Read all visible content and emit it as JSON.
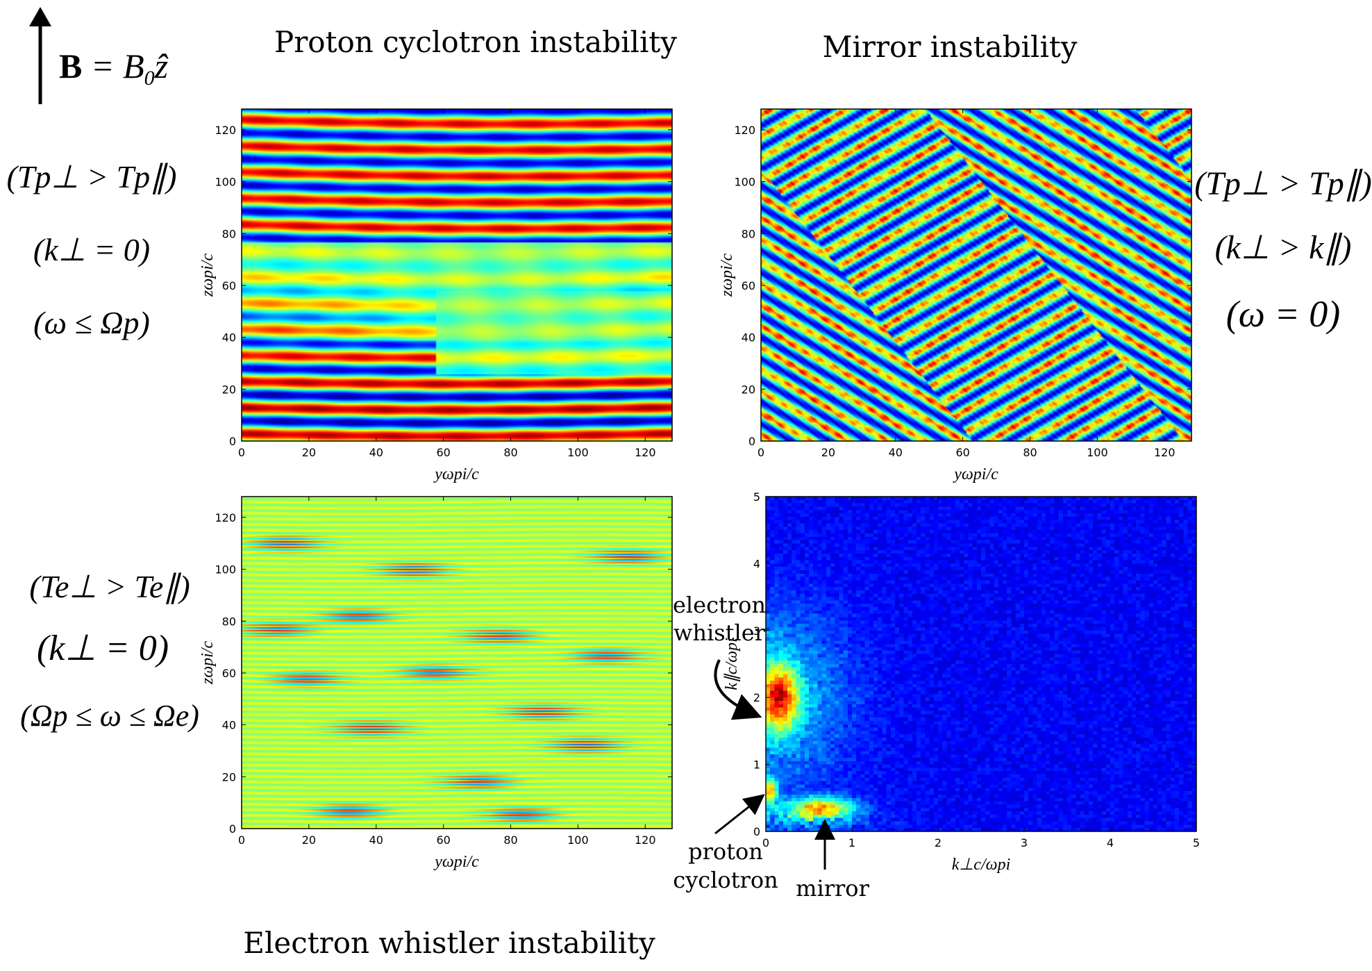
{
  "header": {
    "field_label": "B = B₀ẑ",
    "field_bold": "B",
    "field_eq": " = B",
    "field_sub": "0",
    "field_hat": "ẑ"
  },
  "panels": {
    "proton_cyclotron": {
      "title": "Proton cyclotron instability",
      "xlabel": "yωpi/c",
      "ylabel": "zωpi/c",
      "xticks": [
        "0",
        "20",
        "40",
        "60",
        "80",
        "100",
        "120"
      ],
      "yticks": [
        "0",
        "20",
        "40",
        "60",
        "80",
        "100",
        "120"
      ],
      "conditions": [
        "(Tp⊥ > Tp∥)",
        "(k⊥ = 0)",
        "(ω ≤ Ωp)"
      ]
    },
    "mirror": {
      "title": "Mirror instability",
      "xlabel": "yωpi/c",
      "ylabel": "zωpi/c",
      "xticks": [
        "0",
        "20",
        "40",
        "60",
        "80",
        "100",
        "120"
      ],
      "yticks": [
        "0",
        "20",
        "40",
        "60",
        "80",
        "100",
        "120"
      ],
      "conditions": [
        "(Tp⊥ > Tp∥)",
        "(k⊥ > k∥)",
        "(ω = 0)"
      ]
    },
    "electron_whistler": {
      "title": "Electron whistler instability",
      "xlabel": "yωpi/c",
      "ylabel": "zωpi/c",
      "xticks": [
        "0",
        "20",
        "40",
        "60",
        "80",
        "100",
        "120"
      ],
      "yticks": [
        "0",
        "20",
        "40",
        "60",
        "80",
        "100",
        "120"
      ],
      "conditions": [
        "(Te⊥ > Te∥)",
        "(k⊥ = 0)",
        "(Ωp ≤ ω ≤ Ωe)"
      ]
    },
    "spectrum": {
      "xlabel": "k⊥c/ωpi",
      "ylabel": "k∥c/ωpi",
      "xticks": [
        "0",
        "1",
        "2",
        "3",
        "4",
        "5"
      ],
      "yticks": [
        "0",
        "1",
        "2",
        "3",
        "4",
        "5"
      ],
      "annotations": {
        "electron_whistler": [
          "electron",
          "whistler"
        ],
        "proton_cyclotron": [
          "proton",
          "cyclotron"
        ],
        "mirror": "mirror"
      }
    }
  },
  "chart_data": [
    {
      "type": "heatmap",
      "title": "Proton cyclotron instability",
      "xlabel": "yωpi/c",
      "ylabel": "zωpi/c",
      "xlim": [
        0,
        128
      ],
      "ylim": [
        0,
        128
      ],
      "colormap": "jet",
      "pattern": "horizontal bands (k⊥ = 0)"
    },
    {
      "type": "heatmap",
      "title": "Mirror instability",
      "xlabel": "yωpi/c",
      "ylabel": "zωpi/c",
      "xlim": [
        0,
        128
      ],
      "ylim": [
        0,
        128
      ],
      "colormap": "jet",
      "pattern": "oblique stripes (k⊥ > k∥)"
    },
    {
      "type": "heatmap",
      "title": "Electron whistler instability",
      "xlabel": "yωpi/c",
      "ylabel": "zωpi/c",
      "xlim": [
        0,
        128
      ],
      "ylim": [
        0,
        128
      ],
      "colormap": "jet",
      "pattern": "fine horizontal bands (k⊥ = 0)"
    },
    {
      "type": "heatmap",
      "xlabel": "k⊥c/ωpi",
      "ylabel": "k∥c/ωpi",
      "xlim": [
        0,
        5
      ],
      "ylim": [
        0,
        5
      ],
      "colormap": "jet",
      "peaks": [
        {
          "name": "electron whistler",
          "kperp": 0.15,
          "kpar": 2.0
        },
        {
          "name": "proton cyclotron",
          "kperp": 0.05,
          "kpar": 0.6
        },
        {
          "name": "mirror",
          "kperp": 0.65,
          "kpar": 0.35
        }
      ]
    }
  ],
  "colors": {
    "jet_dark_blue": "#00008f",
    "jet_blue": "#0040ff",
    "jet_cyan": "#40ffff",
    "jet_green": "#9fff60",
    "jet_yellow": "#ffff00",
    "jet_orange": "#ff8000",
    "jet_red": "#c00000",
    "spectrum_background": "#0a2aa8"
  }
}
